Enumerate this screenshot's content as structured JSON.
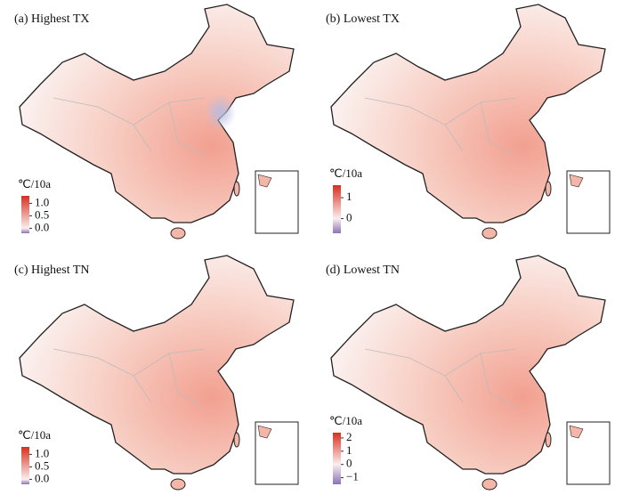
{
  "panels": [
    {
      "title": "(a) Highest TX",
      "legend": {
        "unit": "℃/10a",
        "range": [
          -0.2,
          1.3
        ],
        "ticks": [
          {
            "value": 1,
            "label": "1.0"
          },
          {
            "value": 0.5,
            "label": "0.5"
          },
          {
            "value": 0,
            "label": "0.0"
          }
        ]
      }
    },
    {
      "title": "(b) Lowest TX",
      "legend": {
        "unit": "℃/10a",
        "range": [
          -0.7,
          1.6
        ],
        "ticks": [
          1,
          0
        ]
      }
    },
    {
      "title": "(c) Highest TN",
      "legend": {
        "unit": "℃/10a",
        "range": [
          -0.2,
          1.3
        ],
        "ticks": [
          {
            "value": 1,
            "label": "1.0"
          },
          {
            "value": 0.5,
            "label": "0.5"
          },
          {
            "value": 0,
            "label": "0.0"
          }
        ]
      }
    },
    {
      "title": "(d) Lowest TN",
      "legend": {
        "unit": "℃/10a",
        "range": [
          -1.5,
          2.4
        ],
        "ticks": [
          2,
          1,
          0,
          {
            "value": -1,
            "label": "−1"
          }
        ]
      }
    }
  ]
}
